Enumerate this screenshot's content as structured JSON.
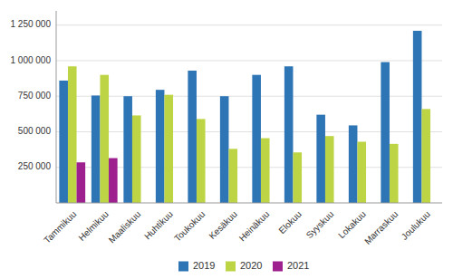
{
  "chart_data": {
    "type": "bar",
    "categories": [
      "Tammikuu",
      "Helmikuu",
      "Maaliskuu",
      "Huhtikuu",
      "Toukokuu",
      "Kesäkuu",
      "Heinäkuu",
      "Elokuu",
      "Syyskuu",
      "Lokakuu",
      "Marraskuu",
      "Joulukuu"
    ],
    "series": [
      {
        "name": "2019",
        "color": "#2e75b6",
        "values": [
          860000,
          755000,
          750000,
          795000,
          930000,
          750000,
          900000,
          960000,
          620000,
          545000,
          990000,
          1210000
        ]
      },
      {
        "name": "2020",
        "color": "#bdd445",
        "values": [
          960000,
          900000,
          615000,
          760000,
          590000,
          380000,
          455000,
          355000,
          470000,
          430000,
          415000,
          660000
        ]
      },
      {
        "name": "2021",
        "color": "#9e1f8e",
        "values": [
          285000,
          315000,
          null,
          null,
          null,
          null,
          null,
          null,
          null,
          null,
          null,
          null
        ]
      }
    ],
    "ylim": [
      0,
      1350000
    ],
    "yticks": [
      {
        "value": 250000,
        "label": "250 000"
      },
      {
        "value": 500000,
        "label": "500 000"
      },
      {
        "value": 750000,
        "label": "750 000"
      },
      {
        "value": 1000000,
        "label": "1 000 000"
      },
      {
        "value": 1250000,
        "label": "1 250 000"
      }
    ],
    "grid": true,
    "legend": "bottom"
  }
}
